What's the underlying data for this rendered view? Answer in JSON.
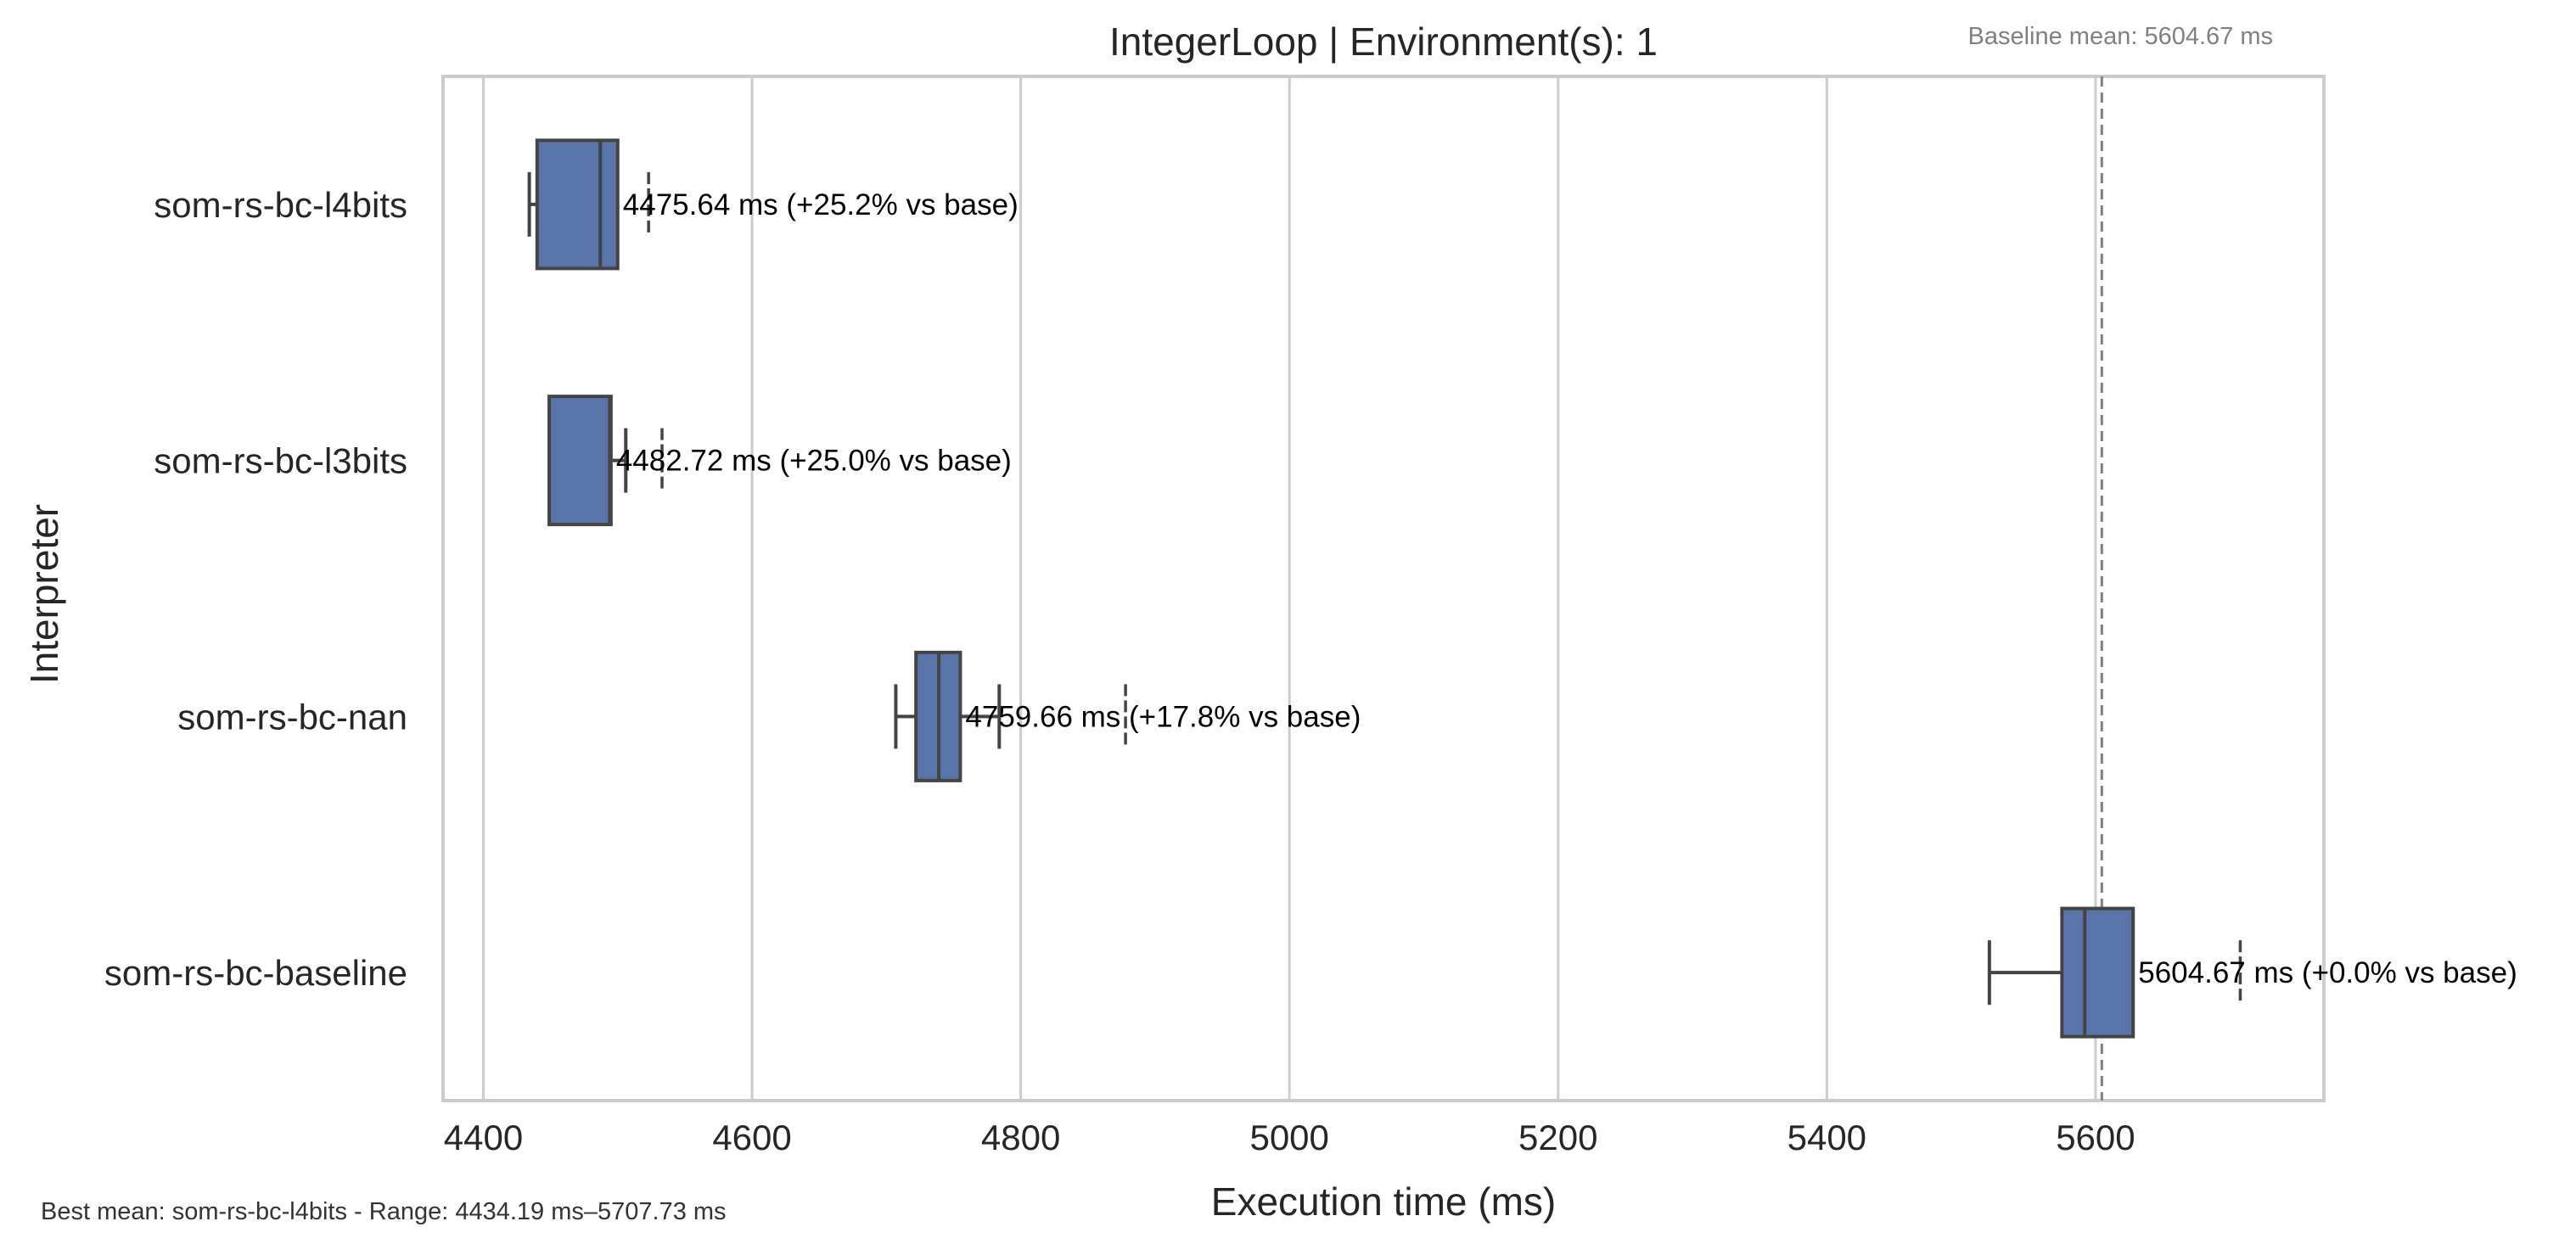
{
  "chart_data": {
    "type": "box",
    "orientation": "horizontal",
    "title": "IntegerLoop | Environment(s): 1",
    "xlabel": "Execution time (ms)",
    "ylabel": "Interpreter",
    "xlim": [
      4370,
      5770
    ],
    "xticks": [
      4400,
      4600,
      4800,
      5000,
      5200,
      5400,
      5600
    ],
    "grid": "vertical",
    "box_color": "#5874a8",
    "line_color": "#444444",
    "baseline": {
      "value": 5604.67,
      "label": "Baseline mean: 5604.67 ms",
      "color": "#808080",
      "style": "dashed"
    },
    "categories": [
      "som-rs-bc-l4bits",
      "som-rs-bc-l3bits",
      "som-rs-bc-nan",
      "som-rs-bc-baseline"
    ],
    "series": [
      {
        "category": "som-rs-bc-l4bits",
        "whisker_low": 4434.19,
        "q1": 4440,
        "median": 4487,
        "q3": 4500,
        "whisker_high": 4500,
        "outliers": [
          4523
        ],
        "mean": 4475.64,
        "label": "4475.64 ms  (+25.2% vs base)"
      },
      {
        "category": "som-rs-bc-l3bits",
        "whisker_low": 4449,
        "q1": 4449,
        "median": 4494,
        "q3": 4495,
        "whisker_high": 4506,
        "outliers": [
          4533
        ],
        "mean": 4482.72,
        "label": "4482.72 ms  (+25.0% vs base)"
      },
      {
        "category": "som-rs-bc-nan",
        "whisker_low": 4707,
        "q1": 4722,
        "median": 4739,
        "q3": 4755,
        "whisker_high": 4784,
        "outliers": [
          4878
        ],
        "mean": 4759.66,
        "label": "4759.66 ms  (+17.8% vs base)"
      },
      {
        "category": "som-rs-bc-baseline",
        "whisker_low": 5521,
        "q1": 5575,
        "median": 5592,
        "q3": 5628,
        "whisker_high": 5628,
        "outliers": [
          5707.73
        ],
        "mean": 5604.67,
        "label": "5604.67 ms  (+0.0% vs base)"
      }
    ],
    "footer": "Best mean: som-rs-bc-l4bits - Range: 4434.19 ms–5707.73 ms"
  }
}
